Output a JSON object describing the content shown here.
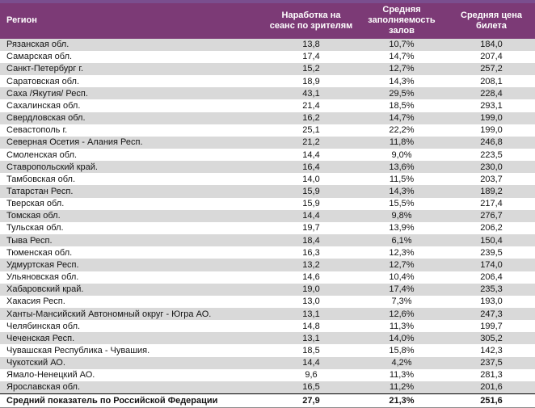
{
  "colors": {
    "top_strip": "#7A4E8E",
    "header_bg": "#7C3A76",
    "header_text": "#FFFFFF",
    "row_stripe": "#D9D9D9",
    "row_white": "#FFFFFF",
    "body_text": "#141414",
    "footer_rule": "#000000",
    "bottom_rule": "#8C8C8C"
  },
  "chart_data": {
    "type": "table",
    "columns": [
      "Регион",
      "Наработка на сеанс по зрителям",
      "Средняя заполняемость залов",
      "Средняя цена билета"
    ],
    "rows": [
      [
        "Рязанская обл.",
        "13,8",
        "10,7%",
        "184,0"
      ],
      [
        "Самарская обл.",
        "17,4",
        "14,7%",
        "207,4"
      ],
      [
        "Санкт-Петербург г.",
        "15,2",
        "12,7%",
        "257,2"
      ],
      [
        "Саратовская обл.",
        "18,9",
        "14,3%",
        "208,1"
      ],
      [
        "Саха /Якутия/ Респ.",
        "43,1",
        "29,5%",
        "228,4"
      ],
      [
        "Сахалинская обл.",
        "21,4",
        "18,5%",
        "293,1"
      ],
      [
        "Свердловская обл.",
        "16,2",
        "14,7%",
        "199,0"
      ],
      [
        "Севастополь г.",
        "25,1",
        "22,2%",
        "199,0"
      ],
      [
        "Северная Осетия - Алания Респ.",
        "21,2",
        "11,8%",
        "246,8"
      ],
      [
        "Смоленская обл.",
        "14,4",
        "9,0%",
        "223,5"
      ],
      [
        "Ставропольский край.",
        "16,4",
        "13,6%",
        "230,0"
      ],
      [
        "Тамбовская обл.",
        "14,0",
        "11,5%",
        "203,7"
      ],
      [
        "Татарстан Респ.",
        "15,9",
        "14,3%",
        "189,2"
      ],
      [
        "Тверская обл.",
        "15,9",
        "15,5%",
        "217,4"
      ],
      [
        "Томская обл.",
        "14,4",
        "9,8%",
        "276,7"
      ],
      [
        "Тульская обл.",
        "19,7",
        "13,9%",
        "206,2"
      ],
      [
        "Тыва Респ.",
        "18,4",
        "6,1%",
        "150,4"
      ],
      [
        "Тюменская обл.",
        "16,3",
        "12,3%",
        "239,5"
      ],
      [
        "Удмуртская Респ.",
        "13,2",
        "12,7%",
        "174,0"
      ],
      [
        "Ульяновская обл.",
        "14,6",
        "10,4%",
        "206,4"
      ],
      [
        "Хабаровский край.",
        "19,0",
        "17,4%",
        "235,3"
      ],
      [
        "Хакасия Респ.",
        "13,0",
        "7,3%",
        "193,0"
      ],
      [
        "Ханты-Мансийский Автономный округ - Югра АО.",
        "13,1",
        "12,6%",
        "247,3"
      ],
      [
        "Челябинская обл.",
        "14,8",
        "11,3%",
        "199,7"
      ],
      [
        "Чеченская Респ.",
        "13,1",
        "14,0%",
        "305,2"
      ],
      [
        "Чувашская Республика - Чувашия.",
        "18,5",
        "15,8%",
        "142,3"
      ],
      [
        "Чукотский АО.",
        "14,4",
        "4,2%",
        "237,5"
      ],
      [
        "Ямало-Ненецкий АО.",
        "9,6",
        "11,3%",
        "281,3"
      ],
      [
        "Ярославская обл.",
        "16,5",
        "11,2%",
        "201,6"
      ]
    ],
    "footer": [
      "Средний показатель по Российской Федерации",
      "27,9",
      "21,3%",
      "251,6"
    ]
  }
}
